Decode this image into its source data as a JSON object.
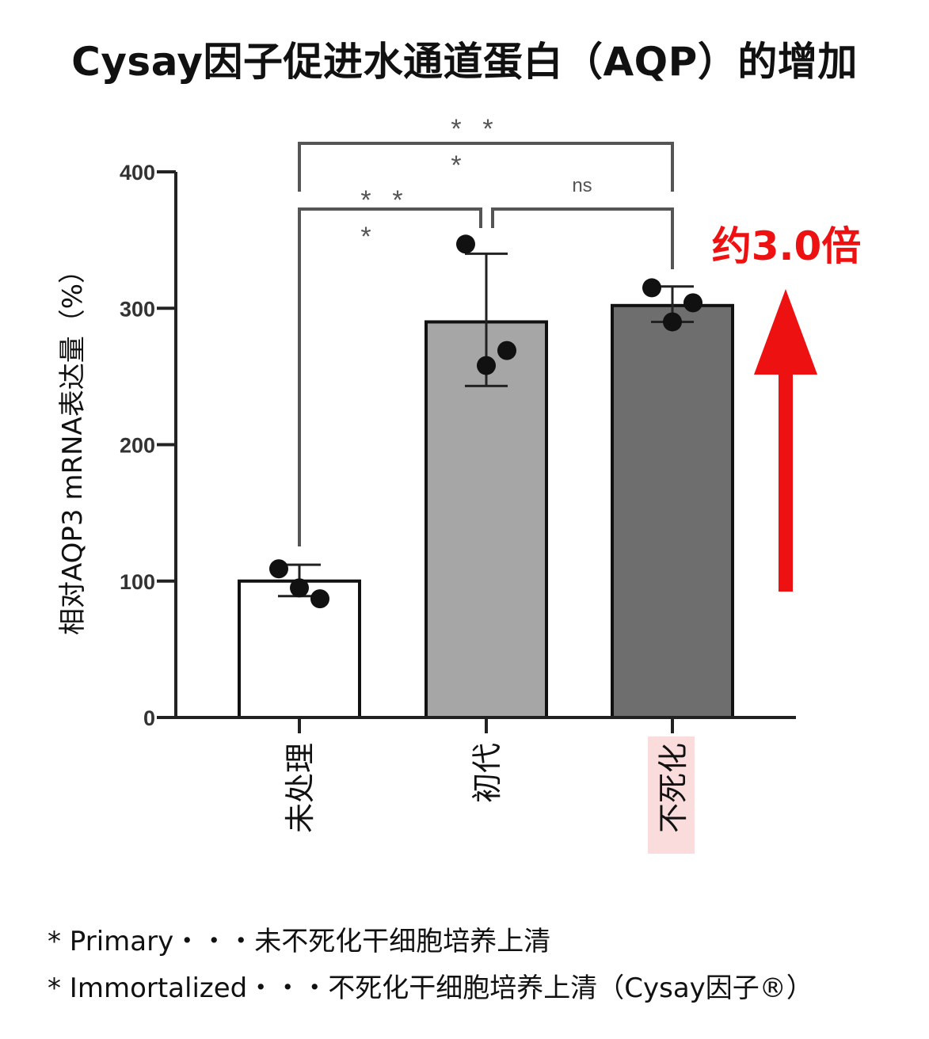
{
  "title": "Cysay因子促进水通道蛋白（AQP）的增加",
  "chart_data": {
    "type": "bar",
    "ylabel": "相对AQP3 mRNA表达量（%）",
    "ylim": [
      0,
      400
    ],
    "yticks": [
      0,
      100,
      200,
      300,
      400
    ],
    "ytick_labels": [
      "0",
      "100",
      "200",
      "300",
      "400"
    ],
    "categories": [
      "未处理",
      "初代",
      "不死化"
    ],
    "values": [
      100,
      290,
      302
    ],
    "error": [
      [
        89,
        112
      ],
      [
        243,
        340
      ],
      [
        290,
        316
      ]
    ],
    "points": [
      [
        109,
        95,
        87
      ],
      [
        347,
        258,
        269
      ],
      [
        315,
        290,
        304
      ]
    ],
    "bar_colors": [
      "#ffffff",
      "#a6a6a6",
      "#6e6e6e"
    ],
    "highlighted_category": "不死化",
    "highlight_color": "#fadcdc",
    "significance": [
      {
        "pair": [
          0,
          1
        ],
        "label": "* * *"
      },
      {
        "pair": [
          0,
          2
        ],
        "label": "* * *"
      },
      {
        "pair": [
          1,
          2
        ],
        "label": "ns"
      }
    ],
    "annotation": "约3.0倍",
    "annotation_color": "#ee1111",
    "grid": false
  },
  "footnotes": [
    "* Primary・・・未不死化干细胞培养上清",
    "* Immortalized・・・不死化干细胞培养上清（Cysay因子®）"
  ]
}
